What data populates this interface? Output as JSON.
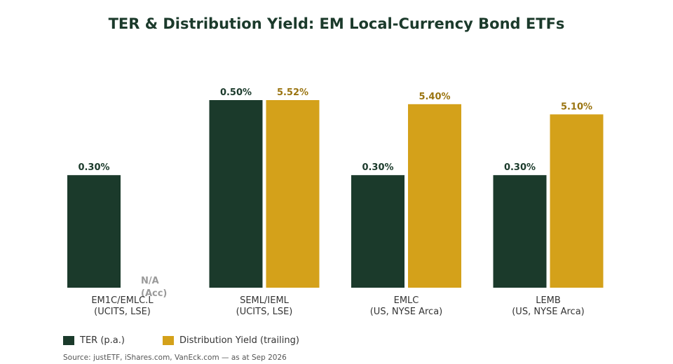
{
  "title": "TER & Distribution Yield: EM Local-Currency Bond ETFs",
  "colors": {
    "ter": "#1b3a2b",
    "yield": "#d4a11a",
    "na": "#9a9a9a"
  },
  "legend": {
    "ter": "TER (p.a.)",
    "yield": "Distribution Yield (trailing)"
  },
  "source": "Source: justETF, iShares.com, VanEck.com — as at Sep 2026",
  "chart_data": {
    "type": "bar",
    "title": "TER & Distribution Yield: EM Local-Currency Bond ETFs",
    "categories": [
      [
        "EM1C/EMLC.L",
        "(UCITS, LSE)"
      ],
      [
        "SEML/IEML",
        "(UCITS, LSE)"
      ],
      [
        "EMLC",
        "(US, NYSE Arca)"
      ],
      [
        "LEMB",
        "(US, NYSE Arca)"
      ]
    ],
    "series": [
      {
        "name": "TER (p.a.)",
        "values": [
          0.3,
          0.5,
          0.3,
          0.3
        ],
        "labels": [
          "0.30%",
          "0.50%",
          "0.30%",
          "0.30%"
        ]
      },
      {
        "name": "Distribution Yield (trailing)",
        "values": [
          null,
          5.52,
          5.4,
          5.1
        ],
        "labels": [
          "N/A\n(Acc)",
          "5.52%",
          "5.40%",
          "5.10%"
        ]
      }
    ],
    "notes": "TER and yield bars are drawn on separate scales (TER 0–0.56%, yield 0–5.52%); no y-axis shown",
    "ter_scale_max": 0.5,
    "yield_scale_max": 5.52,
    "grid": false,
    "legend_position": "bottom-left"
  }
}
